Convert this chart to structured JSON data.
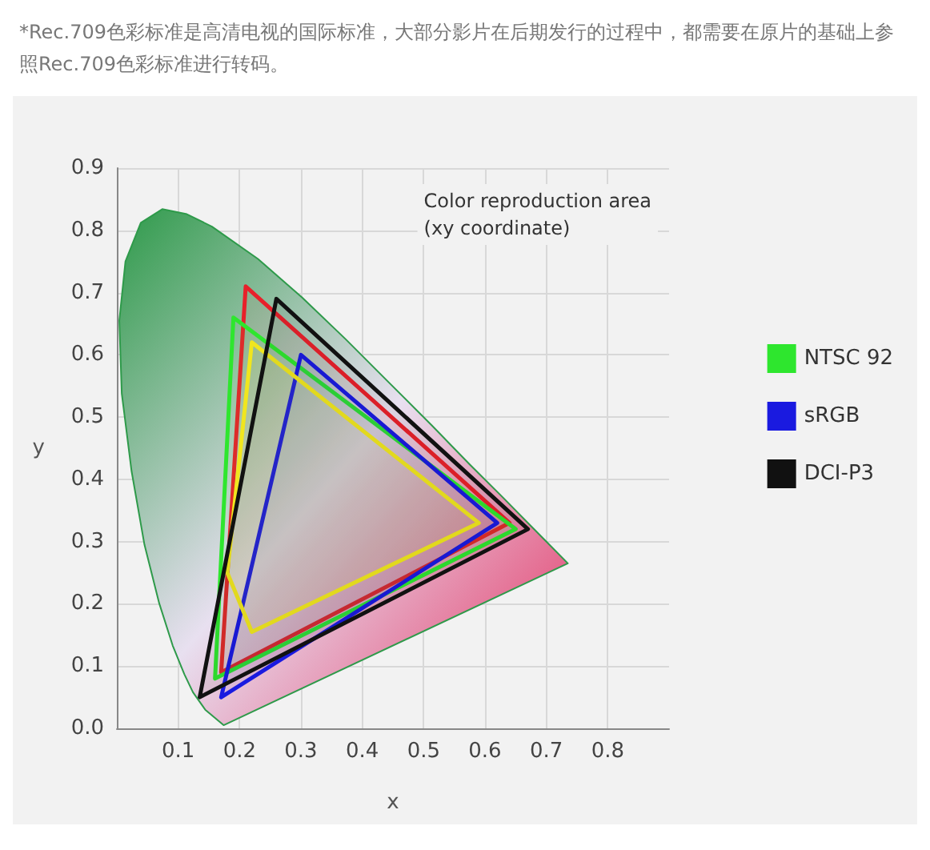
{
  "chart_data": {
    "type": "area",
    "xlabel": "x",
    "ylabel": "y",
    "annotations": [
      "*Rec.709色彩标准是高清电视的国际标准，大部分影片在后期发行的过程中，都需要在原片的基础上参照Rec.709色彩标准进行转码。",
      "Color reproduction area\n(xy coordinate)"
    ],
    "xlim": [
      0,
      0.9
    ],
    "ylim": [
      0,
      0.9
    ],
    "xticks": [
      0.1,
      0.2,
      0.3,
      0.4,
      0.5,
      0.6,
      0.7,
      0.8
    ],
    "yticks": [
      {
        "value": 0,
        "label": "0.0"
      },
      0.1,
      0.2,
      0.3,
      0.4,
      0.5,
      0.6,
      0.7,
      0.8,
      0.9
    ],
    "grid": true,
    "legend": "right",
    "series": [
      {
        "color": "#2e9a4a",
        "x": [
          0.174,
          0.144,
          0.124,
          0.11,
          0.091,
          0.069,
          0.045,
          0.024,
          0.008,
          0.004,
          0.014,
          0.039,
          0.074,
          0.114,
          0.155,
          0.23,
          0.302,
          0.373,
          0.444,
          0.513,
          0.575,
          0.627,
          0.692,
          0.735,
          0.174
        ],
        "values": [
          0.005,
          0.03,
          0.058,
          0.087,
          0.133,
          0.201,
          0.295,
          0.413,
          0.538,
          0.655,
          0.75,
          0.812,
          0.834,
          0.826,
          0.806,
          0.754,
          0.692,
          0.625,
          0.555,
          0.487,
          0.424,
          0.373,
          0.308,
          0.265,
          0.005
        ]
      },
      {
        "color": "#e8202a",
        "x": [
          0.21,
          0.64,
          0.17,
          0.21
        ],
        "values": [
          0.71,
          0.33,
          0.09,
          0.71
        ]
      },
      {
        "name": "NTSC 92",
        "color": "#2ee62e",
        "x": [
          0.19,
          0.65,
          0.16,
          0.19
        ],
        "values": [
          0.66,
          0.32,
          0.08,
          0.66
        ]
      },
      {
        "name": "sRGB",
        "color": "#1a1ae0",
        "x": [
          0.3,
          0.62,
          0.17,
          0.3
        ],
        "values": [
          0.6,
          0.33,
          0.05,
          0.6
        ]
      },
      {
        "color": "#f0e61e",
        "x": [
          0.22,
          0.59,
          0.22,
          0.18,
          0.22
        ],
        "values": [
          0.62,
          0.33,
          0.155,
          0.25,
          0.62
        ]
      },
      {
        "name": "DCI-P3",
        "color": "#111111",
        "x": [
          0.26,
          0.67,
          0.135,
          0.26
        ],
        "values": [
          0.69,
          0.32,
          0.05,
          0.69
        ]
      }
    ]
  }
}
